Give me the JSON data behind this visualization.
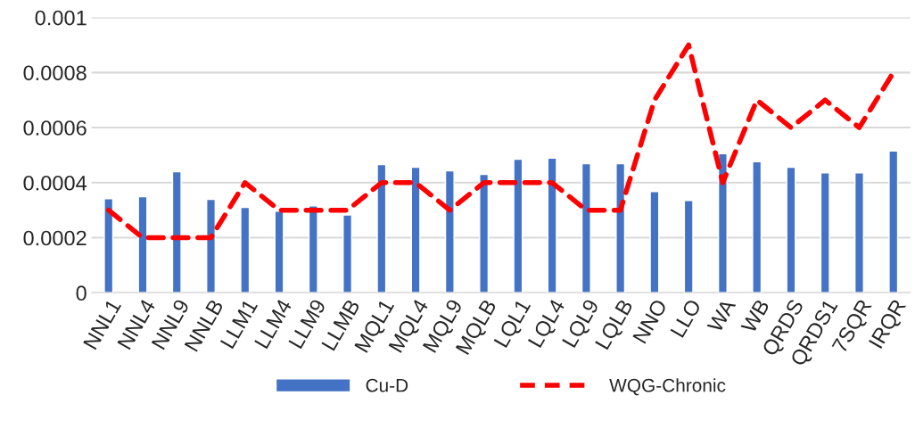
{
  "chart_data": {
    "type": "bar",
    "categories": [
      "NNL1",
      "NNL4",
      "NNL9",
      "NNLB",
      "LLM1",
      "LLM4",
      "LLM9",
      "LLMB",
      "MQL1",
      "MQL4",
      "MQL9",
      "MQLB",
      "LQL1",
      "LQL4",
      "LQL9",
      "LQLB",
      "NNO",
      "LLO",
      "WA",
      "WB",
      "QRDS",
      "QRDS1",
      "7SQR",
      "IRQR"
    ],
    "series": [
      {
        "name": "Cu-D",
        "color": "#4472c4",
        "values": [
          0.000342,
          0.000349,
          0.00044,
          0.000339,
          0.00031,
          0.000296,
          0.000316,
          0.000283,
          0.000466,
          0.000456,
          0.000443,
          0.00043,
          0.000485,
          0.000489,
          0.000469,
          0.000469,
          0.000368,
          0.000335,
          0.000505,
          0.000476,
          0.000456,
          0.000436,
          0.000436,
          0.000515
        ]
      },
      {
        "name": "WQG-Chronic",
        "type": "line",
        "color": "#ff0000",
        "line_style": "dashed",
        "values": [
          0.0003,
          0.0002,
          0.0002,
          0.0002,
          0.0004,
          0.0003,
          0.0003,
          0.0003,
          0.0004,
          0.0004,
          0.0003,
          0.0004,
          0.0004,
          0.0004,
          0.0003,
          0.0003,
          0.0007,
          0.0009,
          0.0004,
          0.0007,
          0.0006,
          0.0007,
          0.0006,
          0.0008
        ]
      }
    ],
    "ylim": [
      0,
      0.001
    ],
    "yticks": [
      0,
      0.0002,
      0.0004,
      0.0006,
      0.0008,
      0.001
    ],
    "grid": "y",
    "legend": "bottom"
  }
}
